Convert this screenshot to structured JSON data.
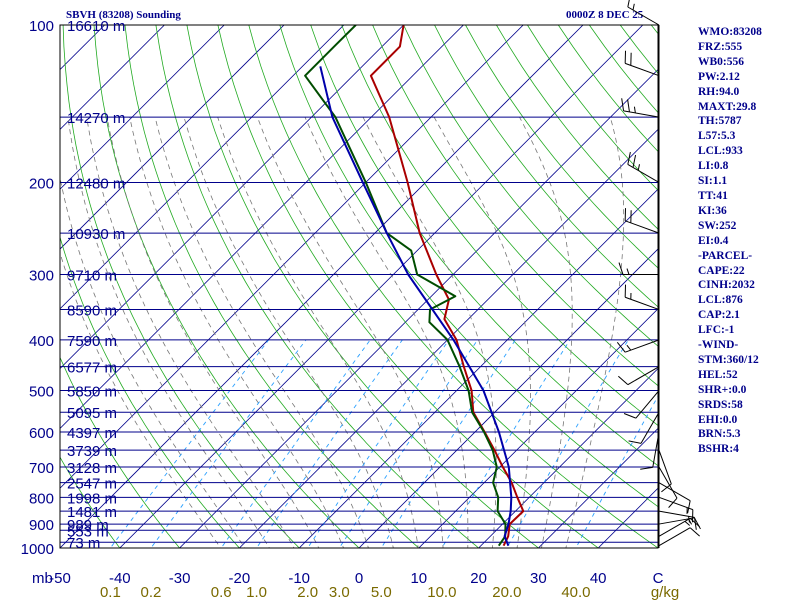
{
  "header": {
    "station": "SBVH (83208) Sounding",
    "time": "0000Z  8 DEC 25"
  },
  "indices": [
    "WMO:83208",
    "FRZ:555",
    "WB0:556",
    "PW:2.12",
    "RH:94.0",
    "MAXT:29.8",
    "TH:5787",
    "L57:5.3",
    "LCL:933",
    "LI:0.8",
    "SI:1.1",
    "TT:41",
    "KI:36",
    "SW:252",
    "EI:0.4",
    "-PARCEL-",
    "CAPE:22",
    "CINH:2032",
    "LCL:876",
    "CAP:2.1",
    "LFC:-1",
    "-WIND-",
    "STM:360/12",
    "HEL:52",
    "SHR+:0.0",
    "SRDS:58",
    "EHI:0.0",
    "BRN:5.3",
    "BSHR:4"
  ],
  "chart_data": {
    "type": "line",
    "title": "SBVH (83208) Sounding",
    "subtitle": "0000Z  8 DEC 25",
    "xlabel": "",
    "ylabel": "mb",
    "x_unit": "C",
    "mixing_ratio_unit": "g/kg",
    "xlim": [
      -50,
      50
    ],
    "ylim": [
      1000,
      100
    ],
    "log_scale_y": true,
    "pressure_ticks": [
      100,
      200,
      300,
      400,
      500,
      600,
      700,
      800,
      900,
      1000
    ],
    "temperature_ticks": [
      "-50",
      "-40",
      "-30",
      "-20",
      "-10",
      "0",
      "10",
      "20",
      "30",
      "40",
      "C"
    ],
    "mixing_ratio_labels": [
      "0.1",
      "0.2",
      "0.6",
      "1.0",
      "2.0",
      "3.0",
      "5.0",
      "10.0",
      "20.0",
      "40.0",
      "g/kg"
    ],
    "mixing_ratio_values": [
      0.1,
      0.2,
      0.6,
      1.0,
      2.0,
      3.0,
      5.0,
      10.0,
      20.0,
      40.0
    ],
    "height_labels": [
      {
        "p": 100,
        "label": "16610 m"
      },
      {
        "p": 150,
        "label": "14270 m"
      },
      {
        "p": 200,
        "label": "12480 m"
      },
      {
        "p": 250,
        "label": "10930 m"
      },
      {
        "p": 300,
        "label": "9710 m"
      },
      {
        "p": 350,
        "label": "8590 m"
      },
      {
        "p": 400,
        "label": "7590 m"
      },
      {
        "p": 450,
        "label": "6577 m"
      },
      {
        "p": 500,
        "label": "5850 m"
      },
      {
        "p": 550,
        "label": "5095 m"
      },
      {
        "p": 600,
        "label": "4397 m"
      },
      {
        "p": 650,
        "label": "3739 m"
      },
      {
        "p": 700,
        "label": "3128 m"
      },
      {
        "p": 750,
        "label": "2547 m"
      },
      {
        "p": 800,
        "label": "1998 m"
      },
      {
        "p": 850,
        "label": "1481 m"
      },
      {
        "p": 900,
        "label": "989 m"
      },
      {
        "p": 925,
        "label": "553 m"
      },
      {
        "p": 975,
        "label": "73 m"
      }
    ],
    "series": [
      {
        "role": "temperature",
        "color": "#aa0000",
        "points": [
          {
            "p": 990,
            "t": 23.8
          },
          {
            "p": 950,
            "t": 23.0
          },
          {
            "p": 900,
            "t": 21.2
          },
          {
            "p": 850,
            "t": 21.3
          },
          {
            "p": 800,
            "t": 18.0
          },
          {
            "p": 750,
            "t": 14.6
          },
          {
            "p": 700,
            "t": 10.5
          },
          {
            "p": 650,
            "t": 6.3
          },
          {
            "p": 600,
            "t": 1.6
          },
          {
            "p": 550,
            "t": -3.6
          },
          {
            "p": 500,
            "t": -7.5
          },
          {
            "p": 450,
            "t": -12.8
          },
          {
            "p": 400,
            "t": -18.5
          },
          {
            "p": 365,
            "t": -24.0
          },
          {
            "p": 335,
            "t": -26.5
          },
          {
            "p": 300,
            "t": -32.8
          },
          {
            "p": 250,
            "t": -42.5
          },
          {
            "p": 200,
            "t": -53.0
          },
          {
            "p": 150,
            "t": -67.0
          },
          {
            "p": 125,
            "t": -77.0
          },
          {
            "p": 110,
            "t": -77.0
          },
          {
            "p": 100,
            "t": -80.0
          }
        ]
      },
      {
        "role": "dewpoint",
        "color": "#004d00",
        "points": [
          {
            "p": 990,
            "t": 23.0
          },
          {
            "p": 950,
            "t": 22.5
          },
          {
            "p": 900,
            "t": 20.5
          },
          {
            "p": 850,
            "t": 17.0
          },
          {
            "p": 800,
            "t": 14.8
          },
          {
            "p": 750,
            "t": 11.5
          },
          {
            "p": 700,
            "t": 9.5
          },
          {
            "p": 650,
            "t": 6.0
          },
          {
            "p": 600,
            "t": 1.5
          },
          {
            "p": 550,
            "t": -3.8
          },
          {
            "p": 500,
            "t": -8.0
          },
          {
            "p": 450,
            "t": -13.5
          },
          {
            "p": 400,
            "t": -20.0
          },
          {
            "p": 370,
            "t": -26.0
          },
          {
            "p": 350,
            "t": -28.0
          },
          {
            "p": 330,
            "t": -26.0
          },
          {
            "p": 300,
            "t": -36.0
          },
          {
            "p": 270,
            "t": -41.0
          },
          {
            "p": 250,
            "t": -48.0
          },
          {
            "p": 200,
            "t": -60.0
          },
          {
            "p": 150,
            "t": -76.0
          },
          {
            "p": 125,
            "t": -88.0
          },
          {
            "p": 110,
            "t": -88.0
          },
          {
            "p": 100,
            "t": -88.0
          }
        ]
      },
      {
        "role": "parcel",
        "color": "#0000aa",
        "points": [
          {
            "p": 990,
            "t": 24.6
          },
          {
            "p": 950,
            "t": 22.4
          },
          {
            "p": 900,
            "t": 21.0
          },
          {
            "p": 850,
            "t": 19.2
          },
          {
            "p": 800,
            "t": 17.0
          },
          {
            "p": 700,
            "t": 11.5
          },
          {
            "p": 600,
            "t": 4.0
          },
          {
            "p": 500,
            "t": -5.5
          },
          {
            "p": 400,
            "t": -19.0
          },
          {
            "p": 300,
            "t": -37.5
          },
          {
            "p": 250,
            "t": -48.0
          },
          {
            "p": 200,
            "t": -60.5
          },
          {
            "p": 150,
            "t": -76.5
          },
          {
            "p": 120,
            "t": -87.0
          }
        ]
      }
    ],
    "winds": [
      {
        "p": 990,
        "dir": 60,
        "spd": 10
      },
      {
        "p": 950,
        "dir": 60,
        "spd": 15
      },
      {
        "p": 900,
        "dir": 80,
        "spd": 15
      },
      {
        "p": 850,
        "dir": 100,
        "spd": 15
      },
      {
        "p": 800,
        "dir": 110,
        "spd": 15
      },
      {
        "p": 750,
        "dir": 120,
        "spd": 10
      },
      {
        "p": 700,
        "dir": 150,
        "spd": 10
      },
      {
        "p": 650,
        "dir": 160,
        "spd": 10
      },
      {
        "p": 600,
        "dir": 190,
        "spd": 10
      },
      {
        "p": 550,
        "dir": 210,
        "spd": 10
      },
      {
        "p": 500,
        "dir": 220,
        "spd": 10
      },
      {
        "p": 450,
        "dir": 240,
        "spd": 10
      },
      {
        "p": 400,
        "dir": 250,
        "spd": 15
      },
      {
        "p": 350,
        "dir": 290,
        "spd": 15
      },
      {
        "p": 300,
        "dir": 270,
        "spd": 15
      },
      {
        "p": 250,
        "dir": 290,
        "spd": 20
      },
      {
        "p": 200,
        "dir": 300,
        "spd": 25
      },
      {
        "p": 150,
        "dir": 280,
        "spd": 25
      },
      {
        "p": 125,
        "dir": 290,
        "spd": 20
      },
      {
        "p": 100,
        "dir": 300,
        "spd": 15
      }
    ],
    "colors": {
      "frame": "#000000",
      "isobar": "#00008b",
      "isotherm": "#00008b",
      "dry_adiabat": "#22aa22",
      "moist_adiabat": "#777777",
      "mixing_ratio": "#2aa0ff",
      "label_text": "#00008b",
      "mixing_label_text": "#7a6a00"
    }
  }
}
